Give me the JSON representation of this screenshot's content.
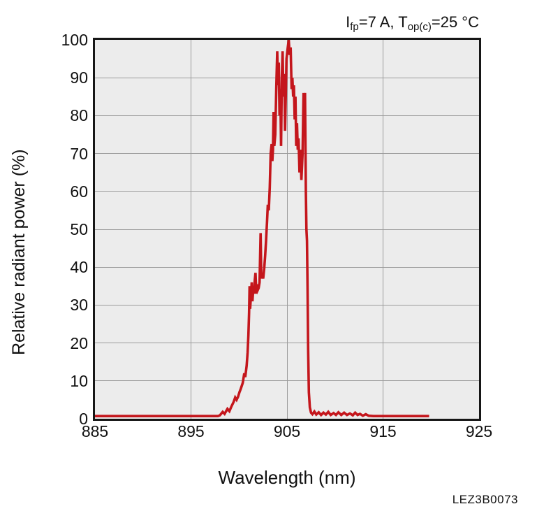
{
  "figure": {
    "condition_annotation": {
      "prefix": "I",
      "prefix_sub": "fp",
      "middle": "=7 A, T",
      "middle_sub": "op(c)",
      "suffix": "=25 °C"
    },
    "footer_code": "LEZ3B0073"
  },
  "axes": {
    "x_title": "Wavelength (nm)",
    "y_title": "Relative radiant power (%)"
  },
  "colors": {
    "curve": "#c4161c",
    "plot_bg": "#ececec",
    "grid": "#9b9b9b",
    "frame": "#161616"
  },
  "chart_data": {
    "type": "line",
    "title": "",
    "xlabel": "Wavelength (nm)",
    "ylabel": "Relative radiant power (%)",
    "xlim": [
      885,
      925
    ],
    "ylim": [
      0,
      100
    ],
    "x_ticks": [
      885,
      895,
      905,
      915,
      925
    ],
    "y_ticks": [
      100,
      90,
      80,
      70,
      60,
      50,
      40,
      30,
      20,
      10,
      0
    ],
    "grid": true,
    "legend_position": "none",
    "annotations": [
      "Ifp=7 A, Top(c)=25 °C",
      "LEZ3B0073"
    ],
    "peak_wavelength_nm": 905.2,
    "series": [
      {
        "name": "relative_radiant_power",
        "color": "#c4161c",
        "points": [
          [
            885.0,
            0.7
          ],
          [
            887.0,
            0.7
          ],
          [
            889.0,
            0.7
          ],
          [
            891.0,
            0.7
          ],
          [
            893.0,
            0.7
          ],
          [
            895.0,
            0.7
          ],
          [
            896.5,
            0.7
          ],
          [
            897.8,
            0.7
          ],
          [
            898.0,
            0.9
          ],
          [
            898.3,
            1.8
          ],
          [
            898.5,
            1.3
          ],
          [
            898.8,
            2.6
          ],
          [
            899.0,
            2.0
          ],
          [
            899.2,
            3.2
          ],
          [
            899.45,
            4.5
          ],
          [
            899.6,
            5.6
          ],
          [
            899.75,
            5.0
          ],
          [
            899.9,
            5.8
          ],
          [
            900.05,
            7.0
          ],
          [
            900.2,
            8.0
          ],
          [
            900.4,
            9.5
          ],
          [
            900.55,
            12.0
          ],
          [
            900.65,
            11.0
          ],
          [
            900.8,
            14.0
          ],
          [
            900.9,
            17.5
          ],
          [
            900.98,
            22.0
          ],
          [
            901.05,
            28.0
          ],
          [
            901.1,
            35.0
          ],
          [
            901.16,
            29.0
          ],
          [
            901.25,
            32.5
          ],
          [
            901.33,
            36.0
          ],
          [
            901.4,
            31.0
          ],
          [
            901.48,
            34.0
          ],
          [
            901.56,
            33.0
          ],
          [
            901.64,
            36.5
          ],
          [
            901.72,
            38.5
          ],
          [
            901.8,
            33.0
          ],
          [
            901.88,
            35.5
          ],
          [
            901.96,
            34.0
          ],
          [
            902.05,
            34.5
          ],
          [
            902.14,
            36.0
          ],
          [
            902.25,
            49.0
          ],
          [
            902.32,
            37.0
          ],
          [
            902.42,
            38.5
          ],
          [
            902.52,
            37.0
          ],
          [
            902.62,
            39.5
          ],
          [
            902.72,
            43.0
          ],
          [
            902.82,
            47.0
          ],
          [
            902.92,
            52.0
          ],
          [
            903.0,
            56.5
          ],
          [
            903.1,
            55.0
          ],
          [
            903.2,
            61.0
          ],
          [
            903.3,
            70.0
          ],
          [
            903.4,
            72.5
          ],
          [
            903.47,
            68.0
          ],
          [
            903.54,
            71.0
          ],
          [
            903.6,
            81.0
          ],
          [
            903.68,
            72.0
          ],
          [
            903.78,
            75.0
          ],
          [
            903.88,
            87.0
          ],
          [
            903.98,
            97.0
          ],
          [
            904.06,
            88.0
          ],
          [
            904.14,
            94.0
          ],
          [
            904.22,
            80.0
          ],
          [
            904.3,
            87.0
          ],
          [
            904.38,
            72.0
          ],
          [
            904.46,
            90.0
          ],
          [
            904.54,
            97.0
          ],
          [
            904.62,
            85.0
          ],
          [
            904.72,
            91.0
          ],
          [
            904.8,
            76.0
          ],
          [
            904.95,
            95.0
          ],
          [
            905.08,
            98.0
          ],
          [
            905.18,
            100.0
          ],
          [
            905.28,
            96.0
          ],
          [
            905.38,
            98.0
          ],
          [
            905.48,
            87.0
          ],
          [
            905.56,
            90.0
          ],
          [
            905.64,
            85.0
          ],
          [
            905.72,
            88.0
          ],
          [
            905.8,
            79.0
          ],
          [
            905.88,
            85.0
          ],
          [
            905.96,
            72.0
          ],
          [
            906.04,
            78.0
          ],
          [
            906.12,
            71.0
          ],
          [
            906.2,
            74.0
          ],
          [
            906.3,
            65.0
          ],
          [
            906.4,
            71.0
          ],
          [
            906.5,
            63.0
          ],
          [
            906.62,
            70.0
          ],
          [
            906.72,
            86.0
          ],
          [
            906.8,
            82.0
          ],
          [
            906.88,
            86.0
          ],
          [
            906.96,
            60.0
          ],
          [
            907.02,
            50.0
          ],
          [
            907.08,
            47.0
          ],
          [
            907.14,
            35.0
          ],
          [
            907.2,
            18.0
          ],
          [
            907.28,
            7.0
          ],
          [
            907.38,
            3.0
          ],
          [
            907.5,
            1.6
          ],
          [
            907.65,
            1.2
          ],
          [
            907.85,
            1.9
          ],
          [
            908.05,
            1.1
          ],
          [
            908.3,
            1.7
          ],
          [
            908.55,
            1.0
          ],
          [
            908.8,
            1.6
          ],
          [
            909.05,
            1.1
          ],
          [
            909.3,
            1.8
          ],
          [
            909.55,
            1.0
          ],
          [
            909.85,
            1.5
          ],
          [
            910.1,
            1.0
          ],
          [
            910.35,
            1.7
          ],
          [
            910.65,
            1.0
          ],
          [
            910.95,
            1.6
          ],
          [
            911.25,
            1.0
          ],
          [
            911.55,
            1.4
          ],
          [
            911.85,
            0.9
          ],
          [
            912.1,
            1.6
          ],
          [
            912.35,
            1.0
          ],
          [
            912.6,
            1.3
          ],
          [
            912.9,
            0.8
          ],
          [
            913.2,
            1.2
          ],
          [
            913.5,
            0.8
          ],
          [
            914.0,
            0.7
          ],
          [
            915.0,
            0.7
          ],
          [
            916.0,
            0.7
          ],
          [
            917.0,
            0.7
          ],
          [
            918.0,
            0.7
          ],
          [
            919.0,
            0.7
          ],
          [
            919.8,
            0.7
          ]
        ]
      }
    ]
  }
}
